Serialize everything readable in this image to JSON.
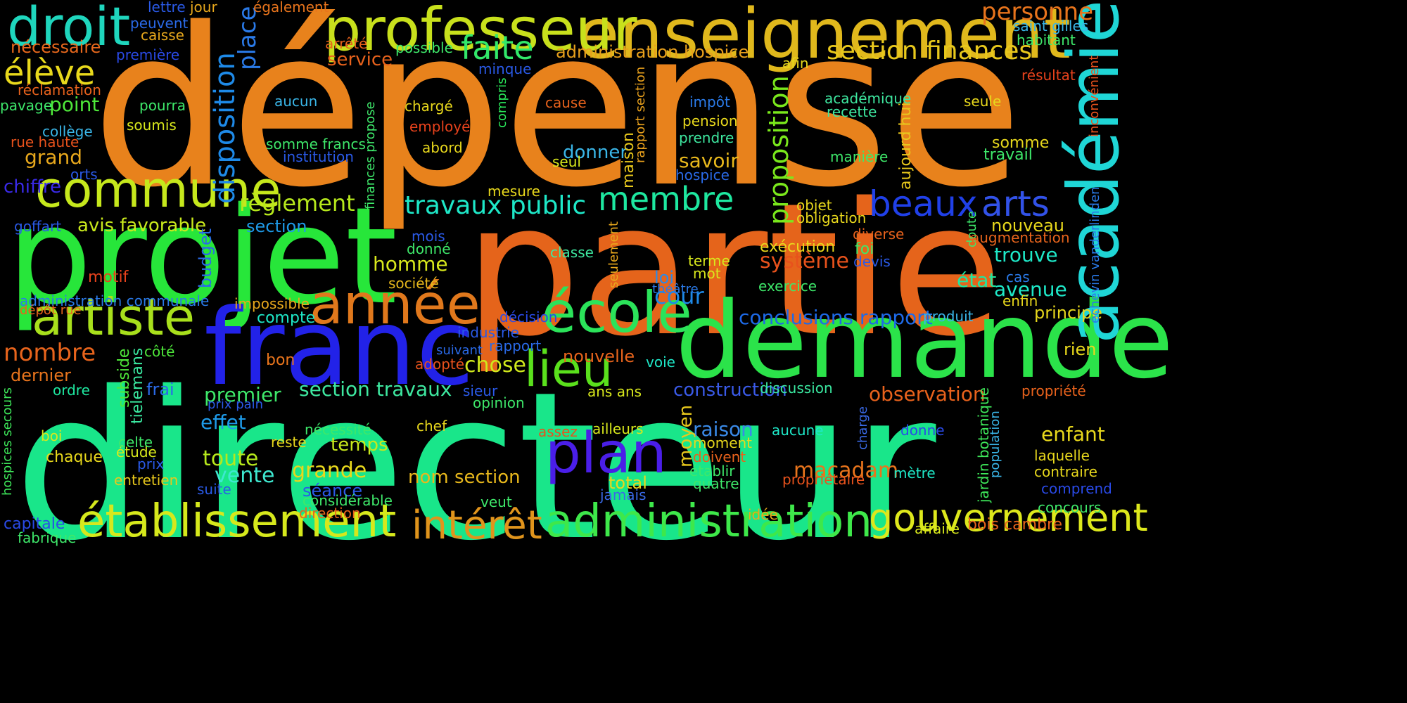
{
  "words": [
    {
      "text": "dépense",
      "color": "#e8821c",
      "vertical": false
    },
    {
      "text": "directeur",
      "color": "#19e68a",
      "vertical": false
    },
    {
      "text": "partie",
      "color": "#e5641b",
      "vertical": false
    },
    {
      "text": "projet",
      "color": "#27e63a",
      "vertical": false
    },
    {
      "text": "franc",
      "color": "#2222e8",
      "vertical": false
    },
    {
      "text": "demande",
      "color": "#2be34a",
      "vertical": false
    },
    {
      "text": "enseignement",
      "color": "#e0b81c",
      "vertical": false
    },
    {
      "text": "professeur",
      "color": "#c8e01c",
      "vertical": false
    },
    {
      "text": "académie",
      "color": "#1fd6d6",
      "vertical": true
    },
    {
      "text": "droit",
      "color": "#1fd6bd",
      "vertical": false
    },
    {
      "text": "commune",
      "color": "#c6e81c",
      "vertical": false
    },
    {
      "text": "artiste",
      "color": "#a8e01c",
      "vertical": false
    },
    {
      "text": "année",
      "color": "#e0781c",
      "vertical": false
    },
    {
      "text": "école",
      "color": "#2be35a",
      "vertical": false
    },
    {
      "text": "lieu",
      "color": "#5ae01c",
      "vertical": false
    },
    {
      "text": "plan",
      "color": "#4a1ee8",
      "vertical": false
    },
    {
      "text": "établissement",
      "color": "#d6e81c",
      "vertical": false
    },
    {
      "text": "administration",
      "color": "#3ee84a",
      "vertical": false
    },
    {
      "text": "intérêt",
      "color": "#e0941c",
      "vertical": false
    },
    {
      "text": "gouvernement",
      "color": "#dde81c",
      "vertical": false
    },
    {
      "text": "beaux",
      "color": "#2040e8",
      "vertical": false
    },
    {
      "text": "arts",
      "color": "#3252e8",
      "vertical": false
    },
    {
      "text": "membre",
      "color": "#1ee8a0",
      "vertical": false
    },
    {
      "text": "faite",
      "color": "#32e86a",
      "vertical": false
    },
    {
      "text": "section finances",
      "color": "#e8c81c",
      "vertical": false
    },
    {
      "text": "travaux public",
      "color": "#1ee8c8",
      "vertical": false
    },
    {
      "text": "règlement",
      "color": "#b6e81c",
      "vertical": false
    },
    {
      "text": "élève",
      "color": "#e8d81c",
      "vertical": false
    },
    {
      "text": "personne",
      "color": "#e8741c",
      "vertical": false
    },
    {
      "text": "disposition",
      "color": "#1e8ae8",
      "vertical": true
    },
    {
      "text": "proposition",
      "color": "#7ae81c",
      "vertical": true
    },
    {
      "text": "place",
      "color": "#2a7ae8",
      "vertical": true
    },
    {
      "text": "avis favorable",
      "color": "#c8e81c",
      "vertical": false
    },
    {
      "text": "nombre",
      "color": "#e8641c",
      "vertical": false
    },
    {
      "text": "système",
      "color": "#e8521c",
      "vertical": false
    },
    {
      "text": "cour",
      "color": "#1e8ae8",
      "vertical": false
    },
    {
      "text": "homme",
      "color": "#d8e81c",
      "vertical": false
    },
    {
      "text": "chose",
      "color": "#d0e81c",
      "vertical": false
    },
    {
      "text": "section travaux",
      "color": "#3ee8a0",
      "vertical": false
    },
    {
      "text": "conclusions rapport",
      "color": "#1e6ae8",
      "vertical": false
    },
    {
      "text": "section",
      "color": "#1e9ae8",
      "vertical": false
    },
    {
      "text": "grand",
      "color": "#e8a81c",
      "vertical": false
    },
    {
      "text": "point",
      "color": "#4ee83a",
      "vertical": false
    },
    {
      "text": "administration hospice",
      "color": "#e8a01c",
      "vertical": false
    },
    {
      "text": "service",
      "color": "#e8621c",
      "vertical": false
    },
    {
      "text": "nécessaire",
      "color": "#e8681c",
      "vertical": false
    },
    {
      "text": "chiffre",
      "color": "#3a2ae8",
      "vertical": false
    },
    {
      "text": "effet",
      "color": "#1e9ae8",
      "vertical": false
    },
    {
      "text": "toute",
      "color": "#b6e81c",
      "vertical": false
    },
    {
      "text": "vente",
      "color": "#3ee8d0",
      "vertical": false
    },
    {
      "text": "grande",
      "color": "#e8d81c",
      "vertical": false
    },
    {
      "text": "temps",
      "color": "#c8e81c",
      "vertical": false
    },
    {
      "text": "premier",
      "color": "#3ee86a",
      "vertical": false
    },
    {
      "text": "macadam",
      "color": "#e8741c",
      "vertical": false
    },
    {
      "text": "nom section",
      "color": "#e8b81c",
      "vertical": false
    },
    {
      "text": "raison",
      "color": "#3a8ae8",
      "vertical": false
    },
    {
      "text": "construction",
      "color": "#3a5ae8",
      "vertical": false
    },
    {
      "text": "observation",
      "color": "#e8621c",
      "vertical": false
    },
    {
      "text": "enfant",
      "color": "#e8d81c",
      "vertical": false
    },
    {
      "text": "trouve",
      "color": "#1ee8c8",
      "vertical": false
    },
    {
      "text": "avenue",
      "color": "#1ee8c8",
      "vertical": false
    },
    {
      "text": "principe",
      "color": "#e8d81c",
      "vertical": false
    },
    {
      "text": "état",
      "color": "#1ee8a0",
      "vertical": false
    },
    {
      "text": "nouveau",
      "color": "#e8d81c",
      "vertical": false
    },
    {
      "text": "savoir",
      "color": "#e8b81c",
      "vertical": false
    },
    {
      "text": "donner",
      "color": "#3ab6e8",
      "vertical": false
    },
    {
      "text": "moyen",
      "color": "#e8c81c",
      "vertical": true
    },
    {
      "text": "budget",
      "color": "#2a6ae8",
      "vertical": true
    },
    {
      "text": "subside",
      "color": "#4ee83a",
      "vertical": true
    },
    {
      "text": "tielemans",
      "color": "#3ae8a0",
      "vertical": true
    },
    {
      "text": "maison",
      "color": "#e8c81c",
      "vertical": true
    },
    {
      "text": "aujourd hui",
      "color": "#e8c81c",
      "vertical": true
    },
    {
      "text": "finances propose",
      "color": "#3ee86a",
      "vertical": true
    },
    {
      "text": "rapport section",
      "color": "#e8a01c",
      "vertical": true
    },
    {
      "text": "compris",
      "color": "#2ae85a",
      "vertical": true
    },
    {
      "text": "seulement",
      "color": "#e8a81c",
      "vertical": true
    },
    {
      "text": "doute",
      "color": "#3ee86a",
      "vertical": true
    },
    {
      "text": "charge",
      "color": "#3a6ae8",
      "vertical": true
    },
    {
      "text": "jardin botanique",
      "color": "#3ee85a",
      "vertical": true
    },
    {
      "text": "population",
      "color": "#3ab6e8",
      "vertical": true
    },
    {
      "text": "hospices secours",
      "color": "#3ee85a",
      "vertical": true
    },
    {
      "text": "échevin vanderlinden",
      "color": "#2a7ae8",
      "vertical": true
    },
    {
      "text": "inconvénient",
      "color": "#e8521c",
      "vertical": true
    },
    {
      "text": "loi",
      "color": "#2a8ae8",
      "vertical": false
    },
    {
      "text": "compte",
      "color": "#1ee8c8",
      "vertical": false
    },
    {
      "text": "frai",
      "color": "#2a6ae8",
      "vertical": false
    },
    {
      "text": "ordre",
      "color": "#1ee8a0",
      "vertical": false
    },
    {
      "text": "dernier",
      "color": "#e8741c",
      "vertical": false
    },
    {
      "text": "côté",
      "color": "#4ee83a",
      "vertical": false
    },
    {
      "text": "bon",
      "color": "#e8741c",
      "vertical": false
    },
    {
      "text": "adopté",
      "color": "#e8521c",
      "vertical": false
    },
    {
      "text": "suivant",
      "color": "#2a6ae8",
      "vertical": false
    },
    {
      "text": "nouvelle",
      "color": "#e8641c",
      "vertical": false
    },
    {
      "text": "voie",
      "color": "#1ee8c8",
      "vertical": false
    },
    {
      "text": "rapport",
      "color": "#2a6ae8",
      "vertical": false
    },
    {
      "text": "industrie",
      "color": "#2a5ae8",
      "vertical": false
    },
    {
      "text": "décision",
      "color": "#2a4ae8",
      "vertical": false
    },
    {
      "text": "théâtre",
      "color": "#2a7ae8",
      "vertical": false
    },
    {
      "text": "exercice",
      "color": "#3ee86a",
      "vertical": false
    },
    {
      "text": "exécution",
      "color": "#e8d81c",
      "vertical": false
    },
    {
      "text": "terme",
      "color": "#d8e81c",
      "vertical": false
    },
    {
      "text": "mot",
      "color": "#d8e81c",
      "vertical": false
    },
    {
      "text": "foi",
      "color": "#3ee86a",
      "vertical": false
    },
    {
      "text": "devis",
      "color": "#2a5ae8",
      "vertical": false
    },
    {
      "text": "diverse",
      "color": "#e8621c",
      "vertical": false
    },
    {
      "text": "augmentation",
      "color": "#e8641c",
      "vertical": false
    },
    {
      "text": "cas",
      "color": "#2a7ae8",
      "vertical": false
    },
    {
      "text": "enfin",
      "color": "#e8d81c",
      "vertical": false
    },
    {
      "text": "produit",
      "color": "#3ab6e8",
      "vertical": false
    },
    {
      "text": "rien",
      "color": "#e8d81c",
      "vertical": false
    },
    {
      "text": "propriété",
      "color": "#e8621c",
      "vertical": false
    },
    {
      "text": "laquelle",
      "color": "#e8d81c",
      "vertical": false
    },
    {
      "text": "contraire",
      "color": "#e8d81c",
      "vertical": false
    },
    {
      "text": "comprend",
      "color": "#2a4ae8",
      "vertical": false
    },
    {
      "text": "concours",
      "color": "#3ee86a",
      "vertical": false
    },
    {
      "text": "bois cambre",
      "color": "#e8641c",
      "vertical": false
    },
    {
      "text": "affaire",
      "color": "#d8e81c",
      "vertical": false
    },
    {
      "text": "mètre",
      "color": "#1ee8c8",
      "vertical": false
    },
    {
      "text": "donne",
      "color": "#2a4ae8",
      "vertical": false
    },
    {
      "text": "propriétaire",
      "color": "#e8521c",
      "vertical": false
    },
    {
      "text": "aucune",
      "color": "#1ee8c8",
      "vertical": false
    },
    {
      "text": "discussion",
      "color": "#3ae8a0",
      "vertical": false
    },
    {
      "text": "ans ans",
      "color": "#d8e81c",
      "vertical": false
    },
    {
      "text": "opinion",
      "color": "#3ee86a",
      "vertical": false
    },
    {
      "text": "sieur",
      "color": "#2a5ae8",
      "vertical": false
    },
    {
      "text": "chef",
      "color": "#e8d81c",
      "vertical": false
    },
    {
      "text": "nécessité",
      "color": "#3ee86a",
      "vertical": false
    },
    {
      "text": "reste",
      "color": "#e8d81c",
      "vertical": false
    },
    {
      "text": "assez",
      "color": "#e8521c",
      "vertical": false
    },
    {
      "text": "ailleurs",
      "color": "#d8e81c",
      "vertical": false
    },
    {
      "text": "moment",
      "color": "#e8d81c",
      "vertical": false
    },
    {
      "text": "doivent",
      "color": "#e8621c",
      "vertical": false
    },
    {
      "text": "établir",
      "color": "#3ee86a",
      "vertical": false
    },
    {
      "text": "quatre",
      "color": "#3ee86a",
      "vertical": false
    },
    {
      "text": "total",
      "color": "#e8d81c",
      "vertical": false
    },
    {
      "text": "jamais",
      "color": "#3a6ae8",
      "vertical": false
    },
    {
      "text": "idée",
      "color": "#e8a81c",
      "vertical": false
    },
    {
      "text": "veut",
      "color": "#3ee86a",
      "vertical": false
    },
    {
      "text": "séance",
      "color": "#2a5ae8",
      "vertical": false
    },
    {
      "text": "considérable",
      "color": "#3ee86a",
      "vertical": false
    },
    {
      "text": "direction",
      "color": "#e8641c",
      "vertical": false
    },
    {
      "text": "suite",
      "color": "#2a5ae8",
      "vertical": false
    },
    {
      "text": "entretien",
      "color": "#e8c81c",
      "vertical": false
    },
    {
      "text": "prix",
      "color": "#2a5ae8",
      "vertical": false
    },
    {
      "text": "étude",
      "color": "#d8e81c",
      "vertical": false
    },
    {
      "text": "celte",
      "color": "#3ee86a",
      "vertical": false
    },
    {
      "text": "chaque",
      "color": "#e8d81c",
      "vertical": false
    },
    {
      "text": "boi",
      "color": "#d8e81c",
      "vertical": false
    },
    {
      "text": "prix pain",
      "color": "#2a5ae8",
      "vertical": false
    },
    {
      "text": "capitale",
      "color": "#2a4ae8",
      "vertical": false
    },
    {
      "text": "fabrique",
      "color": "#3ee86a",
      "vertical": false
    },
    {
      "text": "administration communale",
      "color": "#2a7ae8",
      "vertical": false
    },
    {
      "text": "dépôt rue",
      "color": "#e8641c",
      "vertical": false
    },
    {
      "text": "motif",
      "color": "#e8421c",
      "vertical": false
    },
    {
      "text": "goffart",
      "color": "#2a5ae8",
      "vertical": false
    },
    {
      "text": "orts",
      "color": "#2a5ae8",
      "vertical": false
    },
    {
      "text": "rue haute",
      "color": "#e8521c",
      "vertical": false
    },
    {
      "text": "collège",
      "color": "#3ab6e8",
      "vertical": false
    },
    {
      "text": "pavage",
      "color": "#3ee86a",
      "vertical": false
    },
    {
      "text": "réclamation",
      "color": "#e8621c",
      "vertical": false
    },
    {
      "text": "première",
      "color": "#2a4ae8",
      "vertical": false
    },
    {
      "text": "peuvent",
      "color": "#2a6ae8",
      "vertical": false
    },
    {
      "text": "lettre",
      "color": "#2a5ae8",
      "vertical": false
    },
    {
      "text": "jour",
      "color": "#e8a81c",
      "vertical": false
    },
    {
      "text": "caisse",
      "color": "#e8a81c",
      "vertical": false
    },
    {
      "text": "également",
      "color": "#e8741c",
      "vertical": false
    },
    {
      "text": "arrêté",
      "color": "#e8621c",
      "vertical": false
    },
    {
      "text": "possible",
      "color": "#3ee86a",
      "vertical": false
    },
    {
      "text": "minque",
      "color": "#2a5ae8",
      "vertical": false
    },
    {
      "text": "pourra",
      "color": "#3ee86a",
      "vertical": false
    },
    {
      "text": "soumis",
      "color": "#d8e81c",
      "vertical": false
    },
    {
      "text": "aucun",
      "color": "#3ab6e8",
      "vertical": false
    },
    {
      "text": "somme francs",
      "color": "#3ee86a",
      "vertical": false
    },
    {
      "text": "institution",
      "color": "#2a5ae8",
      "vertical": false
    },
    {
      "text": "chargé",
      "color": "#e8d81c",
      "vertical": false
    },
    {
      "text": "employé",
      "color": "#e8421c",
      "vertical": false
    },
    {
      "text": "abord",
      "color": "#e8d81c",
      "vertical": false
    },
    {
      "text": "cause",
      "color": "#e8621c",
      "vertical": false
    },
    {
      "text": "seul",
      "color": "#d8e81c",
      "vertical": false
    },
    {
      "text": "mesure",
      "color": "#e8d81c",
      "vertical": false
    },
    {
      "text": "impôt",
      "color": "#2a7ae8",
      "vertical": false
    },
    {
      "text": "pension",
      "color": "#e8d81c",
      "vertical": false
    },
    {
      "text": "prendre",
      "color": "#3ee8a0",
      "vertical": false
    },
    {
      "text": "hospice",
      "color": "#2a6ae8",
      "vertical": false
    },
    {
      "text": "afin",
      "color": "#e8d81c",
      "vertical": false
    },
    {
      "text": "académique",
      "color": "#3ee8a0",
      "vertical": false
    },
    {
      "text": "recette",
      "color": "#3ee8a0",
      "vertical": false
    },
    {
      "text": "manière",
      "color": "#3ee86a",
      "vertical": false
    },
    {
      "text": "seule",
      "color": "#e8d81c",
      "vertical": false
    },
    {
      "text": "somme",
      "color": "#e8d81c",
      "vertical": false
    },
    {
      "text": "travail",
      "color": "#3ee86a",
      "vertical": false
    },
    {
      "text": "saint gilles",
      "color": "#3ab6e8",
      "vertical": false
    },
    {
      "text": "habitant",
      "color": "#3ee86a",
      "vertical": false
    },
    {
      "text": "résultat",
      "color": "#e8421c",
      "vertical": false
    },
    {
      "text": "objet",
      "color": "#e8d81c",
      "vertical": false
    },
    {
      "text": "obligation",
      "color": "#e8d81c",
      "vertical": false
    },
    {
      "text": "mois",
      "color": "#2a5ae8",
      "vertical": false
    },
    {
      "text": "donné",
      "color": "#3ee86a",
      "vertical": false
    },
    {
      "text": "classe",
      "color": "#3ee8a0",
      "vertical": false
    },
    {
      "text": "société",
      "color": "#e8b81c",
      "vertical": false
    },
    {
      "text": "impossible",
      "color": "#e8a81c",
      "vertical": false
    }
  ]
}
